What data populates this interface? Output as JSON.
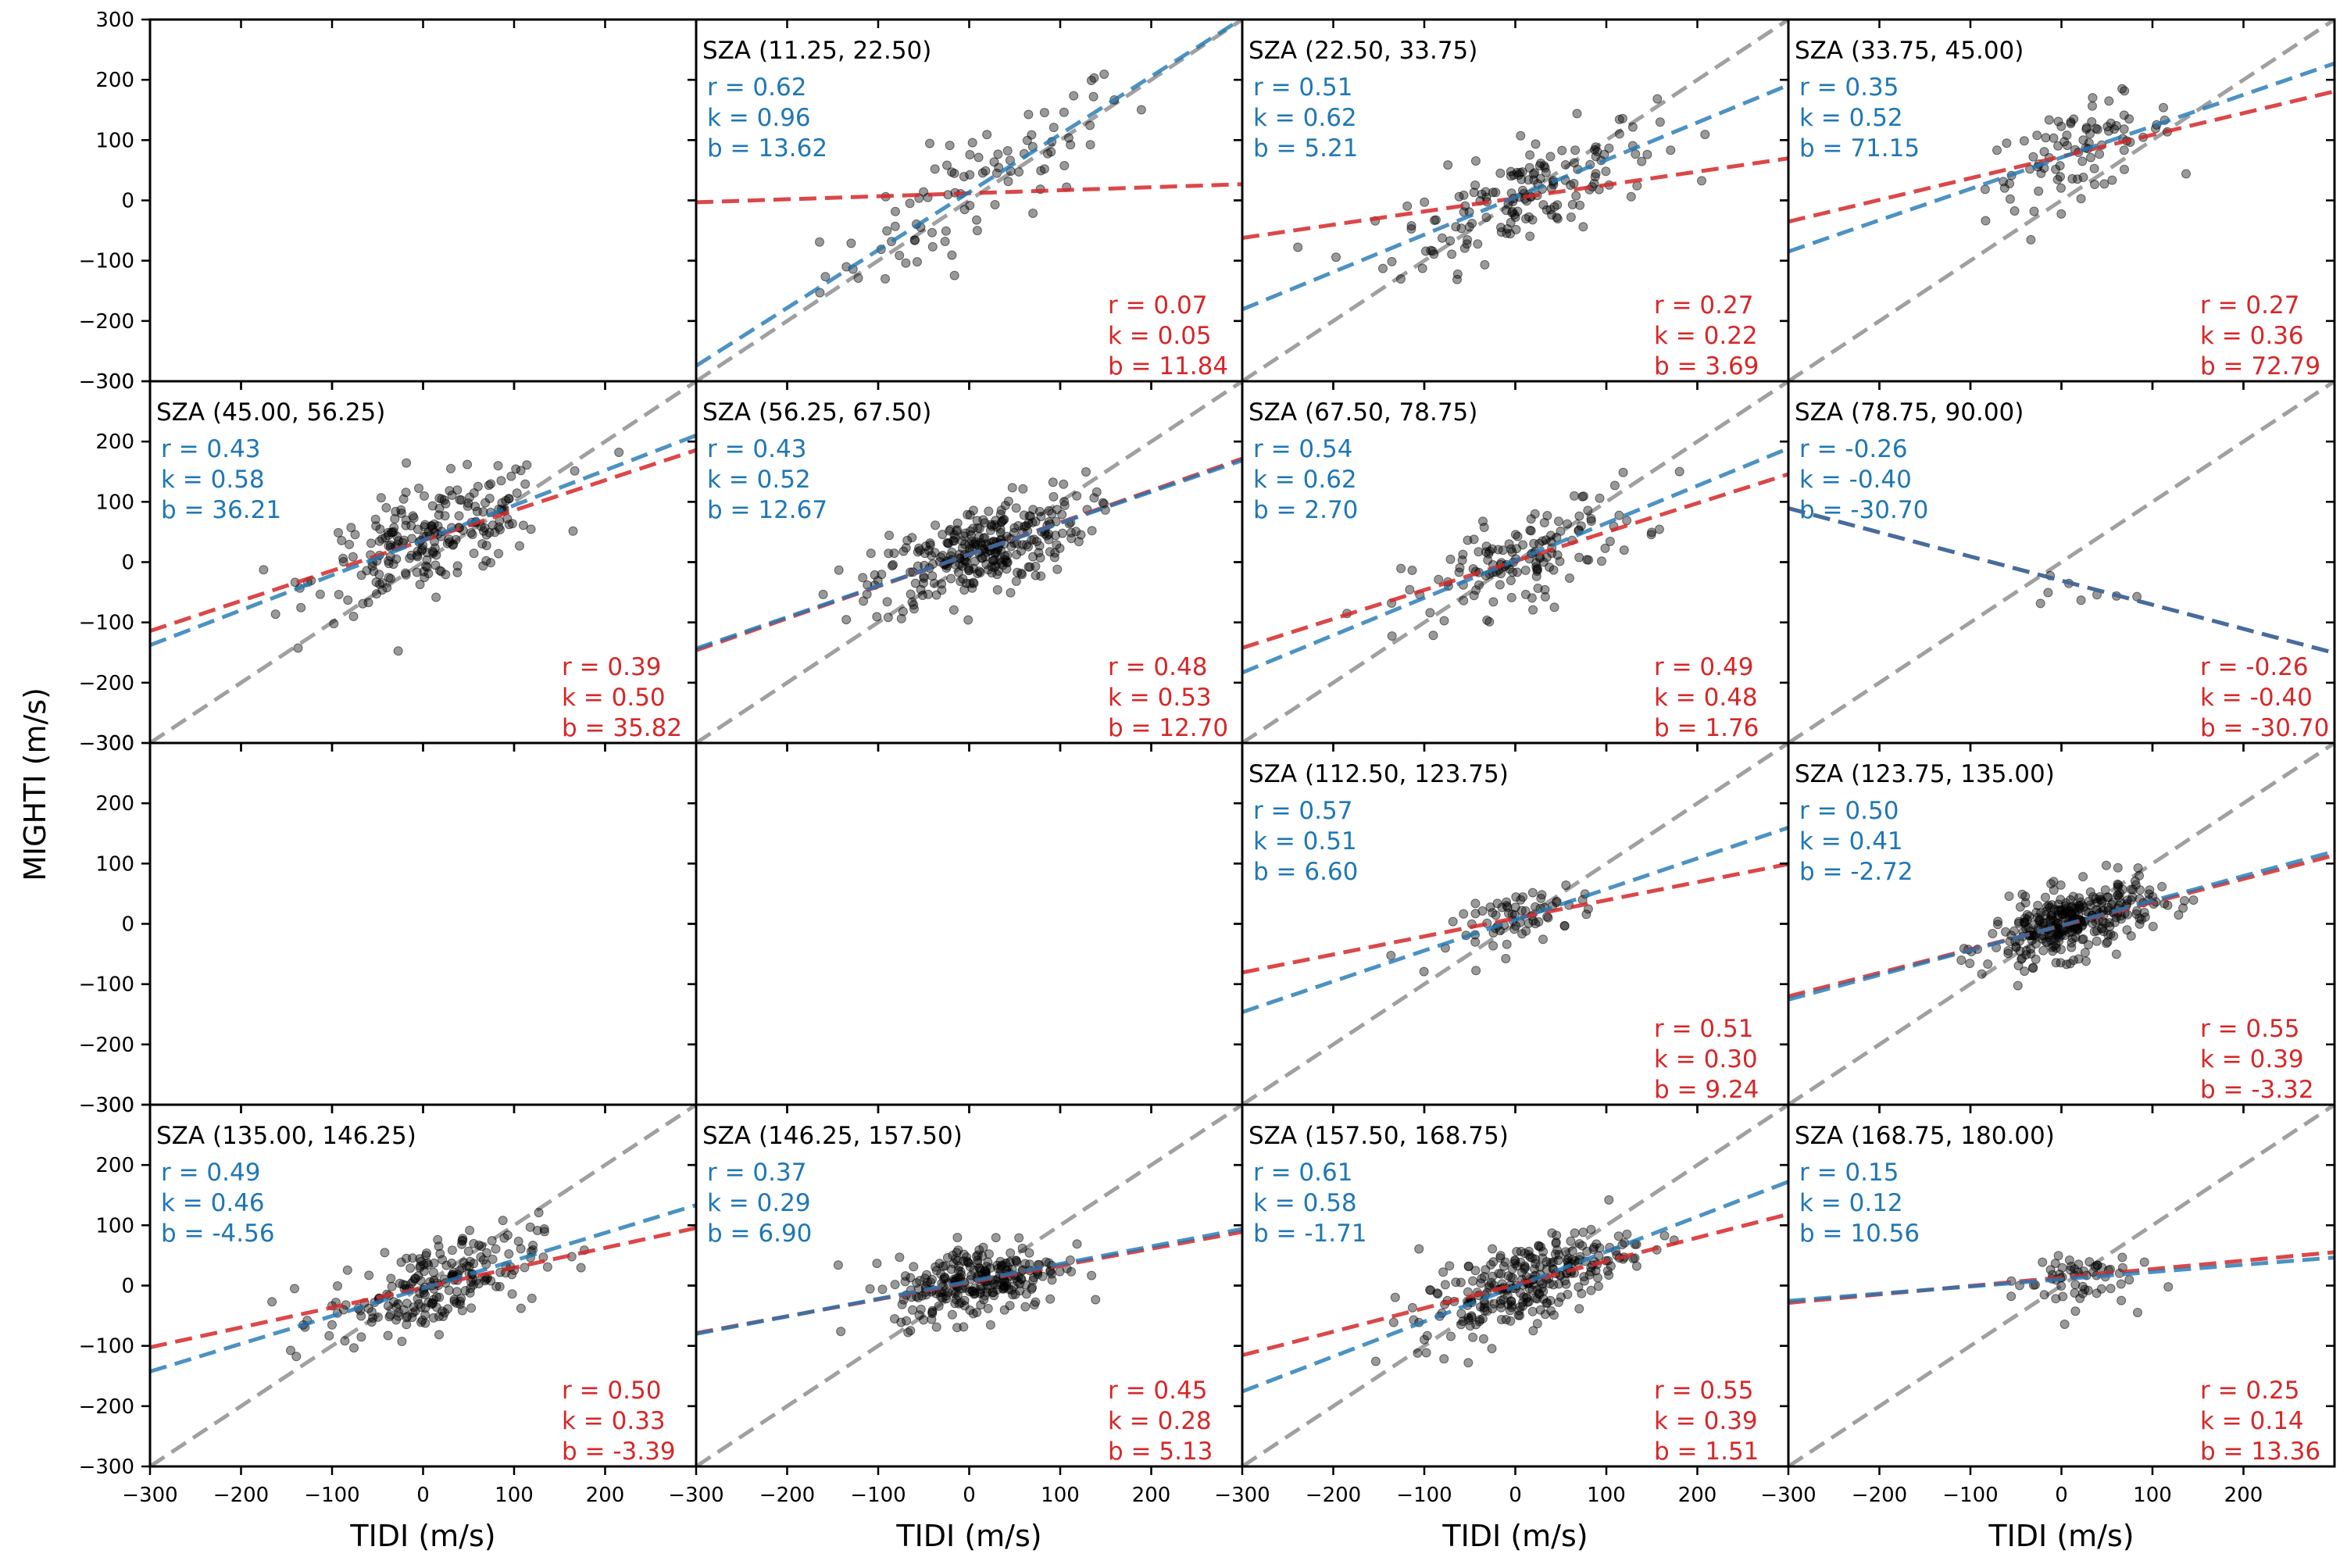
{
  "chart_data": {
    "type": "scatter",
    "layout": {
      "rows": 4,
      "cols": 4
    },
    "xlabel": "TIDI (m/s)",
    "ylabel": "MIGHTI (m/s)",
    "xlim": [
      -300,
      300
    ],
    "ylim": [
      -300,
      300
    ],
    "x_ticks": [
      -300,
      -200,
      -100,
      0,
      100,
      200
    ],
    "y_ticks": [
      -300,
      -200,
      -100,
      0,
      100,
      200,
      300
    ],
    "colors": {
      "blue": "#1f77b4",
      "red": "#d62728",
      "identity": "#a0a0a0",
      "points": "#000000"
    },
    "line_legend": {
      "blue": "linear fit (blue dashed)",
      "red": "fit (red dashed)",
      "grey": "1:1 line (grey dashed)"
    },
    "panels": [
      {
        "title": "",
        "empty": true
      },
      {
        "title": "SZA (11.25, 22.50)",
        "blue": {
          "r": "0.62",
          "k": "0.96",
          "b": "13.62"
        },
        "red": {
          "r": "0.07",
          "k": "0.05",
          "b": "11.84"
        },
        "spread": 65,
        "n": 90
      },
      {
        "title": "SZA (22.50, 33.75)",
        "blue": {
          "r": "0.51",
          "k": "0.62",
          "b": "5.21"
        },
        "red": {
          "r": "0.27",
          "k": "0.22",
          "b": "3.69"
        },
        "spread": 55,
        "n": 160
      },
      {
        "title": "SZA (33.75, 45.00)",
        "blue": {
          "r": "0.35",
          "k": "0.52",
          "b": "71.15"
        },
        "red": {
          "r": "0.27",
          "k": "0.36",
          "b": "72.79"
        },
        "spread": 40,
        "n": 90
      },
      {
        "title": "SZA (45.00, 56.25)",
        "blue": {
          "r": "0.43",
          "k": "0.58",
          "b": "36.21"
        },
        "red": {
          "r": "0.39",
          "k": "0.50",
          "b": "35.82"
        },
        "spread": 50,
        "n": 220
      },
      {
        "title": "SZA (56.25, 67.50)",
        "blue": {
          "r": "0.43",
          "k": "0.52",
          "b": "12.67"
        },
        "red": {
          "r": "0.48",
          "k": "0.53",
          "b": "12.70"
        },
        "spread": 45,
        "n": 300
      },
      {
        "title": "SZA (67.50, 78.75)",
        "blue": {
          "r": "0.54",
          "k": "0.62",
          "b": "2.70"
        },
        "red": {
          "r": "0.49",
          "k": "0.48",
          "b": "1.76"
        },
        "spread": 50,
        "n": 140
      },
      {
        "title": "SZA (78.75, 90.00)",
        "blue": {
          "r": "-0.26",
          "k": "-0.40",
          "b": "-30.70"
        },
        "red": {
          "r": "-0.26",
          "k": "-0.40",
          "b": "-30.70"
        },
        "spread": 25,
        "n": 8
      },
      {
        "title": "",
        "empty": true
      },
      {
        "title": "",
        "empty": true
      },
      {
        "title": "SZA (112.50, 123.75)",
        "blue": {
          "r": "0.57",
          "k": "0.51",
          "b": "6.60"
        },
        "red": {
          "r": "0.51",
          "k": "0.30",
          "b": "9.24"
        },
        "spread": 30,
        "n": 70
      },
      {
        "title": "SZA (123.75, 135.00)",
        "blue": {
          "r": "0.50",
          "k": "0.41",
          "b": "-2.72"
        },
        "red": {
          "r": "0.55",
          "k": "0.39",
          "b": "-3.32"
        },
        "spread": 35,
        "n": 320
      },
      {
        "title": "SZA (135.00, 146.25)",
        "blue": {
          "r": "0.49",
          "k": "0.46",
          "b": "-4.56"
        },
        "red": {
          "r": "0.50",
          "k": "0.33",
          "b": "-3.39"
        },
        "spread": 45,
        "n": 220
      },
      {
        "title": "SZA (146.25, 157.50)",
        "blue": {
          "r": "0.37",
          "k": "0.29",
          "b": "6.90"
        },
        "red": {
          "r": "0.45",
          "k": "0.28",
          "b": "5.13"
        },
        "spread": 35,
        "n": 260
      },
      {
        "title": "SZA (157.50, 168.75)",
        "blue": {
          "r": "0.61",
          "k": "0.58",
          "b": "-1.71"
        },
        "red": {
          "r": "0.55",
          "k": "0.39",
          "b": "1.51"
        },
        "spread": 45,
        "n": 280
      },
      {
        "title": "SZA (168.75, 180.00)",
        "blue": {
          "r": "0.15",
          "k": "0.12",
          "b": "10.56"
        },
        "red": {
          "r": "0.25",
          "k": "0.14",
          "b": "13.36"
        },
        "spread": 25,
        "n": 60
      }
    ]
  }
}
